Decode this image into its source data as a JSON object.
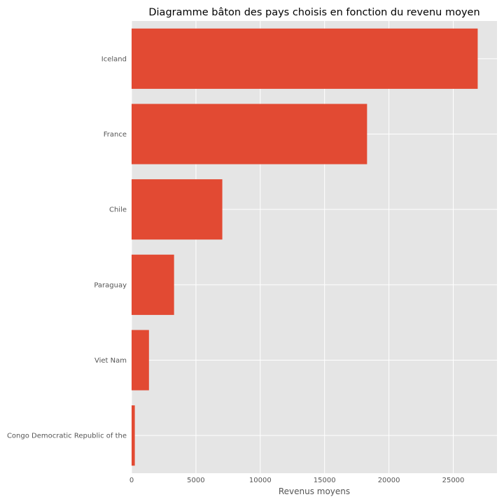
{
  "chart_data": {
    "type": "bar",
    "orientation": "horizontal",
    "title": "Diagramme bâton des pays choisis en fonction du revenu moyen",
    "xlabel": "Revenus moyens",
    "ylabel": "",
    "categories": [
      "Iceland",
      "France",
      "Chile",
      "Paraguay",
      "Viet Nam",
      "Congo Democratic Republic of the"
    ],
    "values": [
      26900,
      18300,
      7050,
      3300,
      1350,
      250
    ],
    "xlim": [
      0,
      28400
    ],
    "xticks": [
      0,
      5000,
      10000,
      15000,
      20000,
      25000
    ],
    "xtick_labels": [
      "0",
      "5000",
      "10000",
      "15000",
      "20000",
      "25000"
    ],
    "grid": true,
    "colors": {
      "bar": "#E24A33",
      "plot_background": "#E5E5E5",
      "grid": "#FFFFFF"
    }
  }
}
